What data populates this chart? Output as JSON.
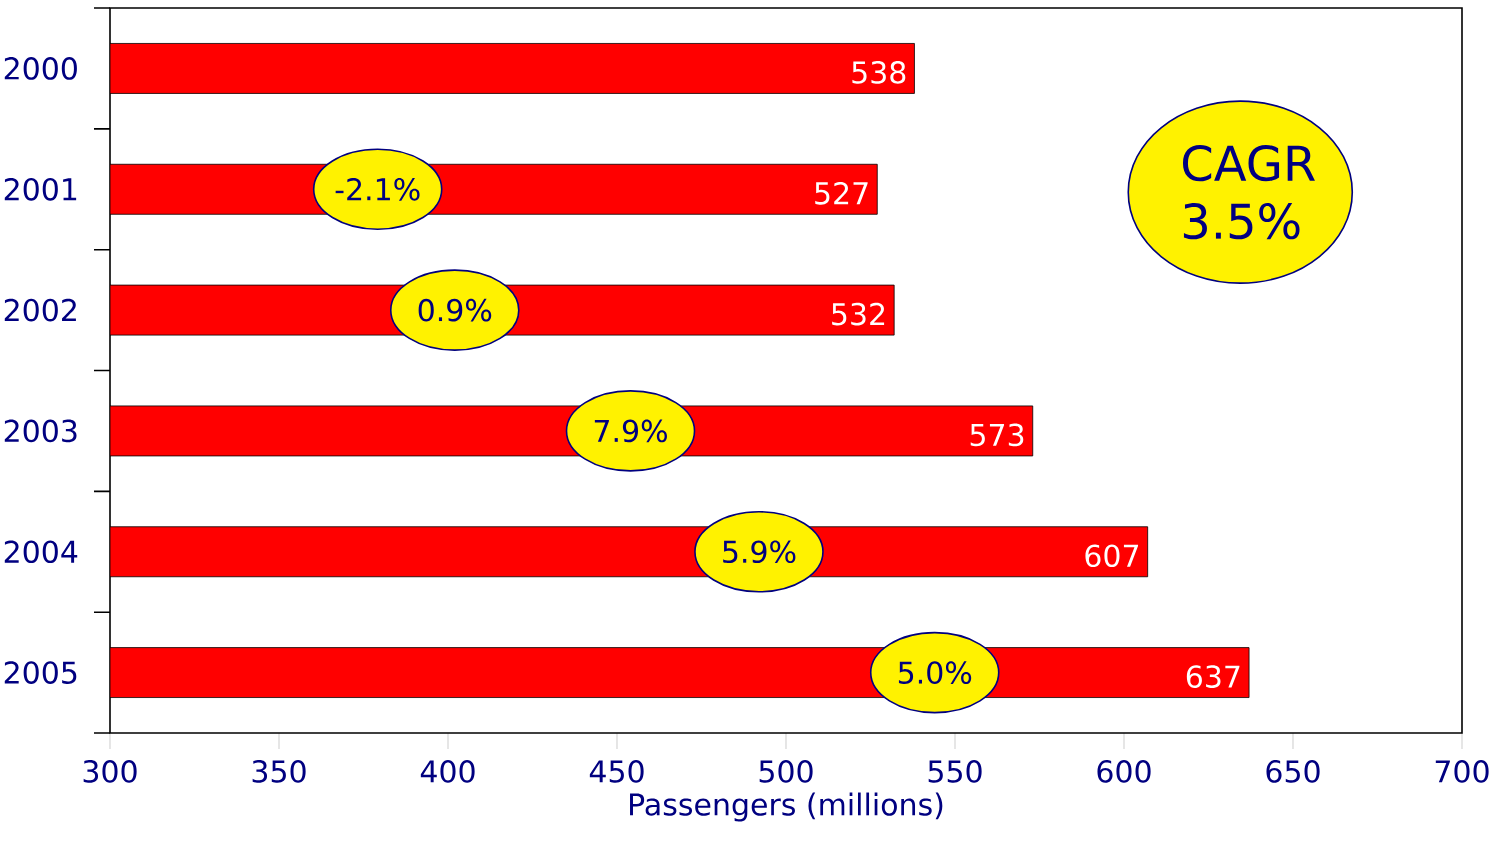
{
  "chart_data": {
    "type": "bar",
    "orientation": "horizontal",
    "categories": [
      "2000",
      "2001",
      "2002",
      "2003",
      "2004",
      "2005"
    ],
    "values": [
      538,
      527,
      532,
      573,
      607,
      637
    ],
    "color": "#ff0000",
    "data_labels": true,
    "xlim": [
      300,
      700
    ],
    "xticks": [
      300,
      350,
      400,
      450,
      500,
      550,
      600,
      650,
      700
    ],
    "xlabel": "Passengers (millions)",
    "annotations": [
      "-2.1%",
      "0.9%",
      "7.9%",
      "5.9%",
      "5.0%",
      "CAGR 3.5%"
    ]
  }
}
